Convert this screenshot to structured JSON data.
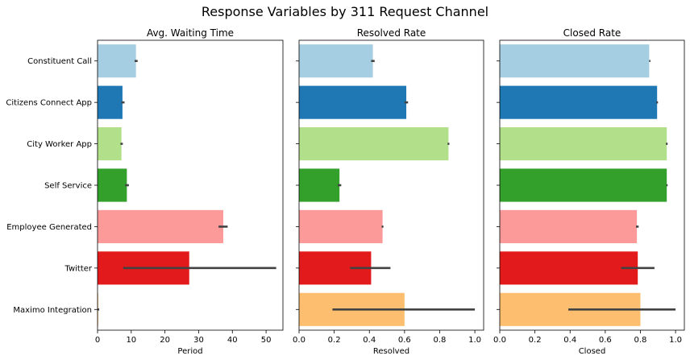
{
  "title": "Response Variables by 311 Request Channel",
  "categories": [
    "Constituent Call",
    "Citizens Connect App",
    "City Worker App",
    "Self Service",
    "Employee Generated",
    "Twitter",
    "Maximo Integration"
  ],
  "colors": [
    "#a6cee3",
    "#1f78b4",
    "#b2df8a",
    "#33a02c",
    "#fb9a99",
    "#e31a1c",
    "#fdbf6f"
  ],
  "chart_data": [
    {
      "type": "bar",
      "orientation": "horizontal",
      "title": "Avg. Waiting Time",
      "xlabel": "Period",
      "xlim": [
        0,
        55
      ],
      "xticks": [
        0,
        10,
        20,
        30,
        40,
        50
      ],
      "xtick_labels": [
        "0",
        "10",
        "20",
        "30",
        "40",
        "50"
      ],
      "categories": [
        "Constituent Call",
        "Citizens Connect App",
        "City Worker App",
        "Self Service",
        "Employee Generated",
        "Twitter",
        "Maximo Integration"
      ],
      "values": [
        11.4,
        7.4,
        7.1,
        8.7,
        37.3,
        27.2,
        0.2
      ],
      "ci_low": [
        11.0,
        7.1,
        6.8,
        8.2,
        35.9,
        7.6,
        0.0
      ],
      "ci_high": [
        11.9,
        8.0,
        7.5,
        9.3,
        38.6,
        53.0,
        0.5
      ]
    },
    {
      "type": "bar",
      "orientation": "horizontal",
      "title": "Resolved Rate",
      "xlabel": "Resolved",
      "xlim": [
        0,
        1.05
      ],
      "xticks": [
        0,
        0.2,
        0.4,
        0.6,
        0.8,
        1.0
      ],
      "xtick_labels": [
        "0.0",
        "0.2",
        "0.4",
        "0.6",
        "0.8",
        "1.0"
      ],
      "categories": [
        "Constituent Call",
        "Citizens Connect App",
        "City Worker App",
        "Self Service",
        "Employee Generated",
        "Twitter",
        "Maximo Integration"
      ],
      "values": [
        0.42,
        0.61,
        0.85,
        0.23,
        0.475,
        0.41,
        0.6
      ],
      "ci_low": [
        0.41,
        0.6,
        0.845,
        0.22,
        0.47,
        0.29,
        0.19
      ],
      "ci_high": [
        0.43,
        0.62,
        0.855,
        0.24,
        0.48,
        0.52,
        1.0
      ]
    },
    {
      "type": "bar",
      "orientation": "horizontal",
      "title": "Closed Rate",
      "xlabel": "Closed",
      "xlim": [
        0,
        1.05
      ],
      "xticks": [
        0,
        0.2,
        0.4,
        0.6,
        0.8,
        1.0
      ],
      "xtick_labels": [
        "0.0",
        "0.2",
        "0.4",
        "0.6",
        "0.8",
        "1.0"
      ],
      "categories": [
        "Constituent Call",
        "Citizens Connect App",
        "City Worker App",
        "Self Service",
        "Employee Generated",
        "Twitter",
        "Maximo Integration"
      ],
      "values": [
        0.85,
        0.895,
        0.95,
        0.95,
        0.78,
        0.785,
        0.8
      ],
      "ci_low": [
        0.85,
        0.89,
        0.945,
        0.948,
        0.775,
        0.69,
        0.39
      ],
      "ci_high": [
        0.85,
        0.9,
        0.955,
        0.952,
        0.79,
        0.88,
        1.0
      ]
    }
  ]
}
